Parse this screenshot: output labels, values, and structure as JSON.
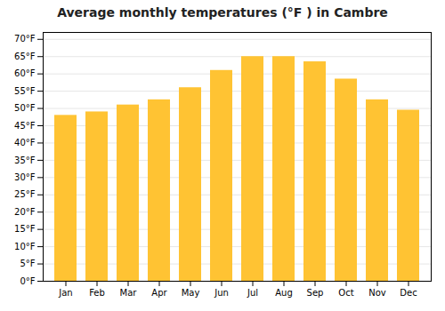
{
  "chart_data": {
    "type": "bar",
    "title": "Average monthly temperatures (°F ) in Cambre",
    "categories": [
      "Jan",
      "Feb",
      "Mar",
      "Apr",
      "May",
      "Jun",
      "Jul",
      "Aug",
      "Sep",
      "Oct",
      "Nov",
      "Dec"
    ],
    "values": [
      48,
      49,
      51,
      52.5,
      56,
      61,
      65,
      65,
      63.5,
      58.5,
      52.5,
      49.5
    ],
    "color": "#FFC333",
    "ylim": [
      0,
      72
    ],
    "yticks": [
      {
        "value": 0,
        "label": "0°F"
      },
      {
        "value": 5,
        "label": "5°F"
      },
      {
        "value": 10,
        "label": "10°F"
      },
      {
        "value": 15,
        "label": "15°F"
      },
      {
        "value": 20,
        "label": "20°F"
      },
      {
        "value": 25,
        "label": "25°F"
      },
      {
        "value": 30,
        "label": "30°F"
      },
      {
        "value": 35,
        "label": "35°F"
      },
      {
        "value": 40,
        "label": "40°F"
      },
      {
        "value": 45,
        "label": "45°F"
      },
      {
        "value": 50,
        "label": "50°F"
      },
      {
        "value": 55,
        "label": "55°F"
      },
      {
        "value": 60,
        "label": "60°F"
      },
      {
        "value": 65,
        "label": "65°F"
      },
      {
        "value": 70,
        "label": "70°F"
      }
    ],
    "grid": true
  }
}
